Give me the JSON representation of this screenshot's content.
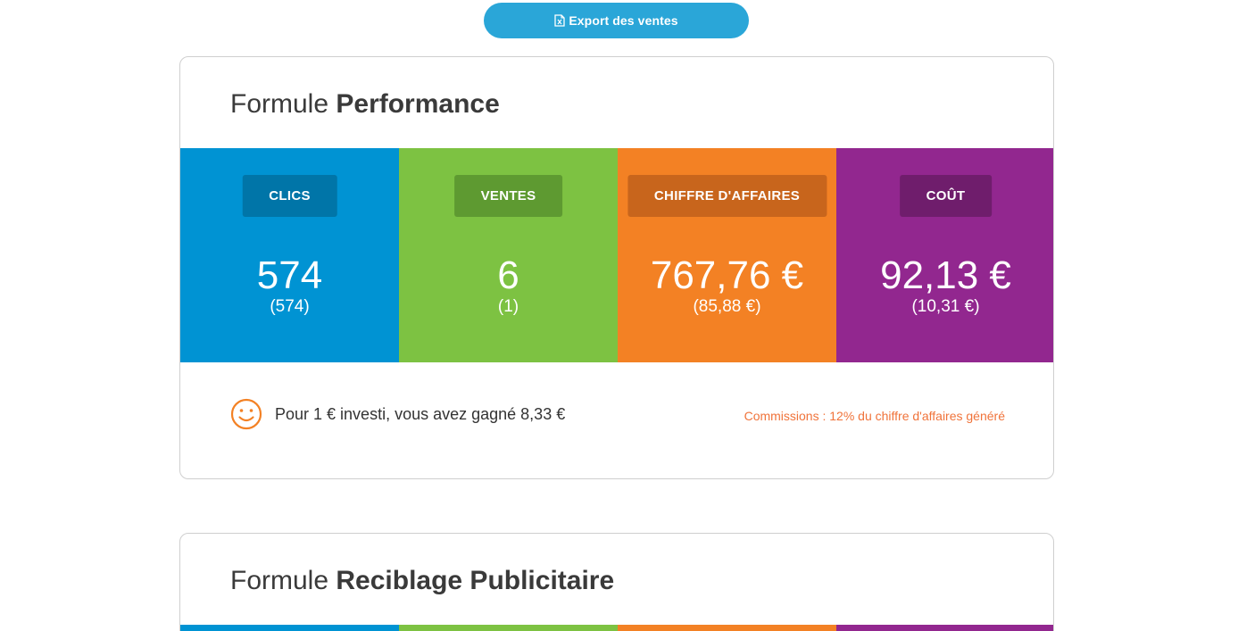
{
  "export": {
    "label": "Export des ventes",
    "icon": "file-export-icon"
  },
  "performance": {
    "title_prefix": "Formule",
    "title_strong": "Performance",
    "stats": [
      {
        "label": "CLICS",
        "value": "574",
        "sub": "(574)",
        "color": "#0093d3"
      },
      {
        "label": "VENTES",
        "value": "6",
        "sub": "(1)",
        "color": "#7dc242"
      },
      {
        "label": "CHIFFRE D'AFFAIRES",
        "value": "767,76 €",
        "sub": "(85,88 €)",
        "color": "#f38124"
      },
      {
        "label": "COÛT",
        "value": "92,13 €",
        "sub": "(10,31 €)",
        "color": "#92278f"
      }
    ],
    "roi_text": "Pour 1 € investi, vous avez gagné 8,33 €",
    "roi_icon": "smiley-icon",
    "commission": "Commissions : 12% du chiffre d'affaires généré"
  },
  "retargeting": {
    "title_prefix": "Formule",
    "title_strong": "Reciblage Publicitaire"
  },
  "colors": {
    "accent": "#2aa6d8",
    "commission": "#f0733a"
  }
}
